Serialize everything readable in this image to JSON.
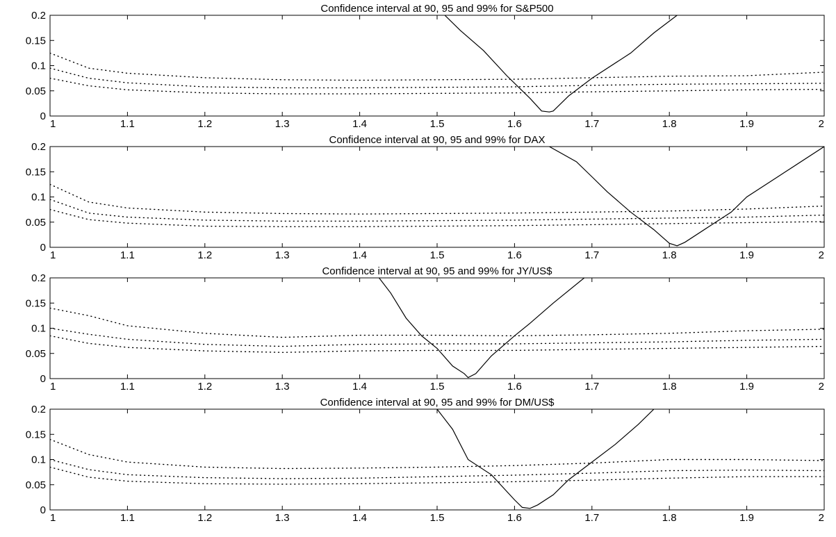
{
  "figure": {
    "background": "#ffffff",
    "line_color": "#000000"
  },
  "chart_data": [
    {
      "type": "line",
      "title": "Confidence interval at 90, 95 and 99% for S&P500",
      "xlabel": "",
      "ylabel": "",
      "xlim": [
        1,
        2
      ],
      "ylim": [
        0,
        0.2
      ],
      "xticks": [
        1,
        1.1,
        1.2,
        1.3,
        1.4,
        1.5,
        1.6,
        1.7,
        1.8,
        1.9,
        2
      ],
      "xtick_labels": [
        "1",
        "1.1",
        "1.2",
        "1.3",
        "1.4",
        "1.5",
        "1.6",
        "1.7",
        "1.8",
        "1.9",
        "2"
      ],
      "yticks": [
        0,
        0.05,
        0.1,
        0.15,
        0.2
      ],
      "ytick_labels": [
        "0",
        "0.05",
        "0.1",
        "0.15",
        "0.2"
      ],
      "grid": false,
      "series": [
        {
          "style": "solid",
          "x": [
            1.51,
            1.53,
            1.56,
            1.59,
            1.62,
            1.635,
            1.645,
            1.65,
            1.67,
            1.7,
            1.75,
            1.78,
            1.81
          ],
          "y": [
            0.2,
            0.17,
            0.13,
            0.08,
            0.035,
            0.01,
            0.008,
            0.01,
            0.04,
            0.075,
            0.125,
            0.165,
            0.2
          ]
        },
        {
          "style": "dotted",
          "x": [
            1.0,
            1.05,
            1.1,
            1.2,
            1.3,
            1.4,
            1.5,
            1.6,
            1.7,
            1.8,
            1.9,
            2.0
          ],
          "y": [
            0.125,
            0.095,
            0.085,
            0.076,
            0.072,
            0.071,
            0.072,
            0.073,
            0.076,
            0.079,
            0.08,
            0.087
          ]
        },
        {
          "style": "dotted",
          "x": [
            1.0,
            1.05,
            1.1,
            1.2,
            1.3,
            1.4,
            1.5,
            1.6,
            1.7,
            1.8,
            1.9,
            2.0
          ],
          "y": [
            0.095,
            0.075,
            0.066,
            0.058,
            0.056,
            0.056,
            0.057,
            0.058,
            0.061,
            0.063,
            0.064,
            0.065
          ]
        },
        {
          "style": "dotted",
          "x": [
            1.0,
            1.05,
            1.1,
            1.2,
            1.3,
            1.4,
            1.5,
            1.6,
            1.7,
            1.8,
            1.9,
            2.0
          ],
          "y": [
            0.075,
            0.06,
            0.052,
            0.046,
            0.044,
            0.044,
            0.045,
            0.046,
            0.048,
            0.05,
            0.052,
            0.053
          ]
        }
      ]
    },
    {
      "type": "line",
      "title": "Confidence interval at 90, 95 and 99% for DAX",
      "xlabel": "",
      "ylabel": "",
      "xlim": [
        1,
        2
      ],
      "ylim": [
        0,
        0.2
      ],
      "xticks": [
        1,
        1.1,
        1.2,
        1.3,
        1.4,
        1.5,
        1.6,
        1.7,
        1.8,
        1.9,
        2
      ],
      "xtick_labels": [
        "1",
        "1.1",
        "1.2",
        "1.3",
        "1.4",
        "1.5",
        "1.6",
        "1.7",
        "1.8",
        "1.9",
        "2"
      ],
      "yticks": [
        0,
        0.05,
        0.1,
        0.15,
        0.2
      ],
      "ytick_labels": [
        "0",
        "0.05",
        "0.1",
        "0.15",
        "0.2"
      ],
      "grid": false,
      "series": [
        {
          "style": "solid",
          "x": [
            1.645,
            1.68,
            1.7,
            1.72,
            1.75,
            1.78,
            1.8,
            1.81,
            1.82,
            1.85,
            1.88,
            1.9,
            1.95,
            2.0
          ],
          "y": [
            0.2,
            0.17,
            0.14,
            0.11,
            0.07,
            0.035,
            0.008,
            0.003,
            0.01,
            0.04,
            0.07,
            0.1,
            0.15,
            0.2
          ]
        },
        {
          "style": "dotted",
          "x": [
            1.0,
            1.05,
            1.1,
            1.2,
            1.3,
            1.4,
            1.5,
            1.6,
            1.7,
            1.8,
            1.9,
            2.0
          ],
          "y": [
            0.125,
            0.09,
            0.078,
            0.07,
            0.067,
            0.066,
            0.067,
            0.068,
            0.07,
            0.072,
            0.076,
            0.082
          ]
        },
        {
          "style": "dotted",
          "x": [
            1.0,
            1.05,
            1.1,
            1.2,
            1.3,
            1.4,
            1.5,
            1.6,
            1.7,
            1.8,
            1.9,
            2.0
          ],
          "y": [
            0.095,
            0.068,
            0.06,
            0.054,
            0.052,
            0.052,
            0.053,
            0.054,
            0.056,
            0.058,
            0.06,
            0.064
          ]
        },
        {
          "style": "dotted",
          "x": [
            1.0,
            1.05,
            1.1,
            1.2,
            1.3,
            1.4,
            1.5,
            1.6,
            1.7,
            1.8,
            1.9,
            2.0
          ],
          "y": [
            0.075,
            0.055,
            0.048,
            0.042,
            0.041,
            0.041,
            0.042,
            0.043,
            0.045,
            0.047,
            0.049,
            0.051
          ]
        }
      ]
    },
    {
      "type": "line",
      "title": "Confidence interval at 90, 95 and 99% for JY/US$",
      "xlabel": "",
      "ylabel": "",
      "xlim": [
        1,
        2
      ],
      "ylim": [
        0,
        0.2
      ],
      "xticks": [
        1,
        1.1,
        1.2,
        1.3,
        1.4,
        1.5,
        1.6,
        1.7,
        1.8,
        1.9,
        2
      ],
      "xtick_labels": [
        "1",
        "1.1",
        "1.2",
        "1.3",
        "1.4",
        "1.5",
        "1.6",
        "1.7",
        "1.8",
        "1.9",
        "2"
      ],
      "yticks": [
        0,
        0.05,
        0.1,
        0.15,
        0.2
      ],
      "ytick_labels": [
        "0",
        "0.05",
        "0.1",
        "0.15",
        "0.2"
      ],
      "grid": false,
      "series": [
        {
          "style": "solid",
          "x": [
            1.425,
            1.44,
            1.46,
            1.48,
            1.5,
            1.52,
            1.535,
            1.54,
            1.55,
            1.57,
            1.6,
            1.62,
            1.65,
            1.69
          ],
          "y": [
            0.2,
            0.17,
            0.12,
            0.085,
            0.06,
            0.025,
            0.01,
            0.002,
            0.01,
            0.045,
            0.085,
            0.11,
            0.15,
            0.2
          ]
        },
        {
          "style": "dotted",
          "x": [
            1.0,
            1.05,
            1.1,
            1.2,
            1.3,
            1.4,
            1.5,
            1.6,
            1.7,
            1.8,
            1.9,
            2.0
          ],
          "y": [
            0.14,
            0.125,
            0.105,
            0.09,
            0.082,
            0.086,
            0.086,
            0.085,
            0.087,
            0.09,
            0.095,
            0.098
          ]
        },
        {
          "style": "dotted",
          "x": [
            1.0,
            1.05,
            1.1,
            1.2,
            1.3,
            1.4,
            1.5,
            1.6,
            1.7,
            1.8,
            1.9,
            2.0
          ],
          "y": [
            0.1,
            0.088,
            0.078,
            0.068,
            0.064,
            0.068,
            0.069,
            0.069,
            0.071,
            0.073,
            0.076,
            0.078
          ]
        },
        {
          "style": "dotted",
          "x": [
            1.0,
            1.05,
            1.1,
            1.2,
            1.3,
            1.4,
            1.5,
            1.6,
            1.7,
            1.8,
            1.9,
            2.0
          ],
          "y": [
            0.085,
            0.07,
            0.062,
            0.055,
            0.052,
            0.055,
            0.056,
            0.056,
            0.058,
            0.06,
            0.062,
            0.064
          ]
        }
      ]
    },
    {
      "type": "line",
      "title": "Confidence interval at 90, 95 and 99% for DM/US$",
      "xlabel": "",
      "ylabel": "",
      "xlim": [
        1,
        2
      ],
      "ylim": [
        0,
        0.2
      ],
      "xticks": [
        1,
        1.1,
        1.2,
        1.3,
        1.4,
        1.5,
        1.6,
        1.7,
        1.8,
        1.9,
        2
      ],
      "xtick_labels": [
        "1",
        "1.1",
        "1.2",
        "1.3",
        "1.4",
        "1.5",
        "1.6",
        "1.7",
        "1.8",
        "1.9",
        "2"
      ],
      "yticks": [
        0,
        0.05,
        0.1,
        0.15,
        0.2
      ],
      "ytick_labels": [
        "0",
        "0.05",
        "0.1",
        "0.15",
        "0.2"
      ],
      "grid": false,
      "series": [
        {
          "style": "solid",
          "x": [
            1.5,
            1.52,
            1.54,
            1.57,
            1.6,
            1.61,
            1.62,
            1.63,
            1.65,
            1.67,
            1.7,
            1.73,
            1.76,
            1.78
          ],
          "y": [
            0.2,
            0.16,
            0.1,
            0.07,
            0.02,
            0.005,
            0.003,
            0.01,
            0.03,
            0.06,
            0.095,
            0.13,
            0.17,
            0.2
          ]
        },
        {
          "style": "dotted",
          "x": [
            1.0,
            1.05,
            1.1,
            1.2,
            1.3,
            1.4,
            1.5,
            1.6,
            1.7,
            1.8,
            1.9,
            2.0
          ],
          "y": [
            0.14,
            0.11,
            0.095,
            0.085,
            0.082,
            0.083,
            0.085,
            0.088,
            0.093,
            0.1,
            0.1,
            0.098
          ]
        },
        {
          "style": "dotted",
          "x": [
            1.0,
            1.05,
            1.1,
            1.2,
            1.3,
            1.4,
            1.5,
            1.6,
            1.7,
            1.8,
            1.9,
            2.0
          ],
          "y": [
            0.1,
            0.08,
            0.07,
            0.064,
            0.062,
            0.063,
            0.066,
            0.069,
            0.073,
            0.078,
            0.079,
            0.078
          ]
        },
        {
          "style": "dotted",
          "x": [
            1.0,
            1.05,
            1.1,
            1.2,
            1.3,
            1.4,
            1.5,
            1.6,
            1.7,
            1.8,
            1.9,
            2.0
          ],
          "y": [
            0.085,
            0.065,
            0.057,
            0.052,
            0.051,
            0.052,
            0.054,
            0.056,
            0.059,
            0.063,
            0.066,
            0.066
          ]
        }
      ]
    }
  ]
}
